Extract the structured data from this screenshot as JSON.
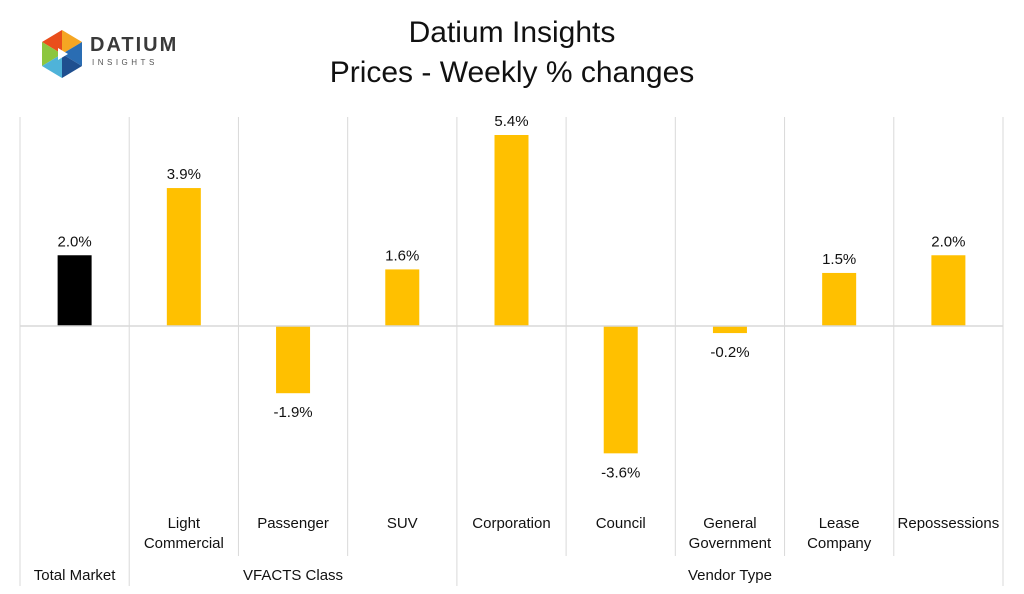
{
  "logo": {
    "name": "DATIUM",
    "tagline": "INSIGHTS",
    "colors": [
      "#2a6db3",
      "#4fb3d9",
      "#8cc63f",
      "#f5a623",
      "#e94e1b"
    ]
  },
  "title_line1": "Datium Insights",
  "title_line2": "Prices - Weekly % changes",
  "chart_data": {
    "type": "bar",
    "categories": [
      [
        "",
        "Total Market"
      ],
      [
        "Light Commercial",
        "VFACTS Class"
      ],
      [
        "Passenger",
        "VFACTS Class"
      ],
      [
        "SUV",
        "VFACTS Class"
      ],
      [
        "Corporation",
        "Vendor Type"
      ],
      [
        "Council",
        "Vendor Type"
      ],
      [
        "General Government",
        "Vendor Type"
      ],
      [
        "Lease Company",
        "Vendor Type"
      ],
      [
        "Repossessions",
        "Vendor Type"
      ]
    ],
    "category_lines": [
      [
        ""
      ],
      [
        "Light",
        "Commercial"
      ],
      [
        "Passenger"
      ],
      [
        "SUV"
      ],
      [
        "Corporation"
      ],
      [
        "Council"
      ],
      [
        "General",
        "Government"
      ],
      [
        "Lease",
        "Company"
      ],
      [
        "Repossessions"
      ]
    ],
    "groups": [
      {
        "label": "Total Market",
        "start": 0,
        "end": 0
      },
      {
        "label": "VFACTS Class",
        "start": 1,
        "end": 3
      },
      {
        "label": "Vendor Type",
        "start": 4,
        "end": 8
      }
    ],
    "values": [
      2.0,
      3.9,
      -1.9,
      1.6,
      5.4,
      -3.6,
      -0.2,
      1.5,
      2.0
    ],
    "data_labels": [
      "2.0%",
      "3.9%",
      "-1.9%",
      "1.6%",
      "5.4%",
      "-3.6%",
      "-0.2%",
      "1.5%",
      "2.0%"
    ],
    "bar_colors": [
      "#000000",
      "#ffc000",
      "#ffc000",
      "#ffc000",
      "#ffc000",
      "#ffc000",
      "#ffc000",
      "#ffc000",
      "#ffc000"
    ],
    "ylim": [
      -5.0,
      6.0
    ],
    "grid": false,
    "legend": false
  }
}
